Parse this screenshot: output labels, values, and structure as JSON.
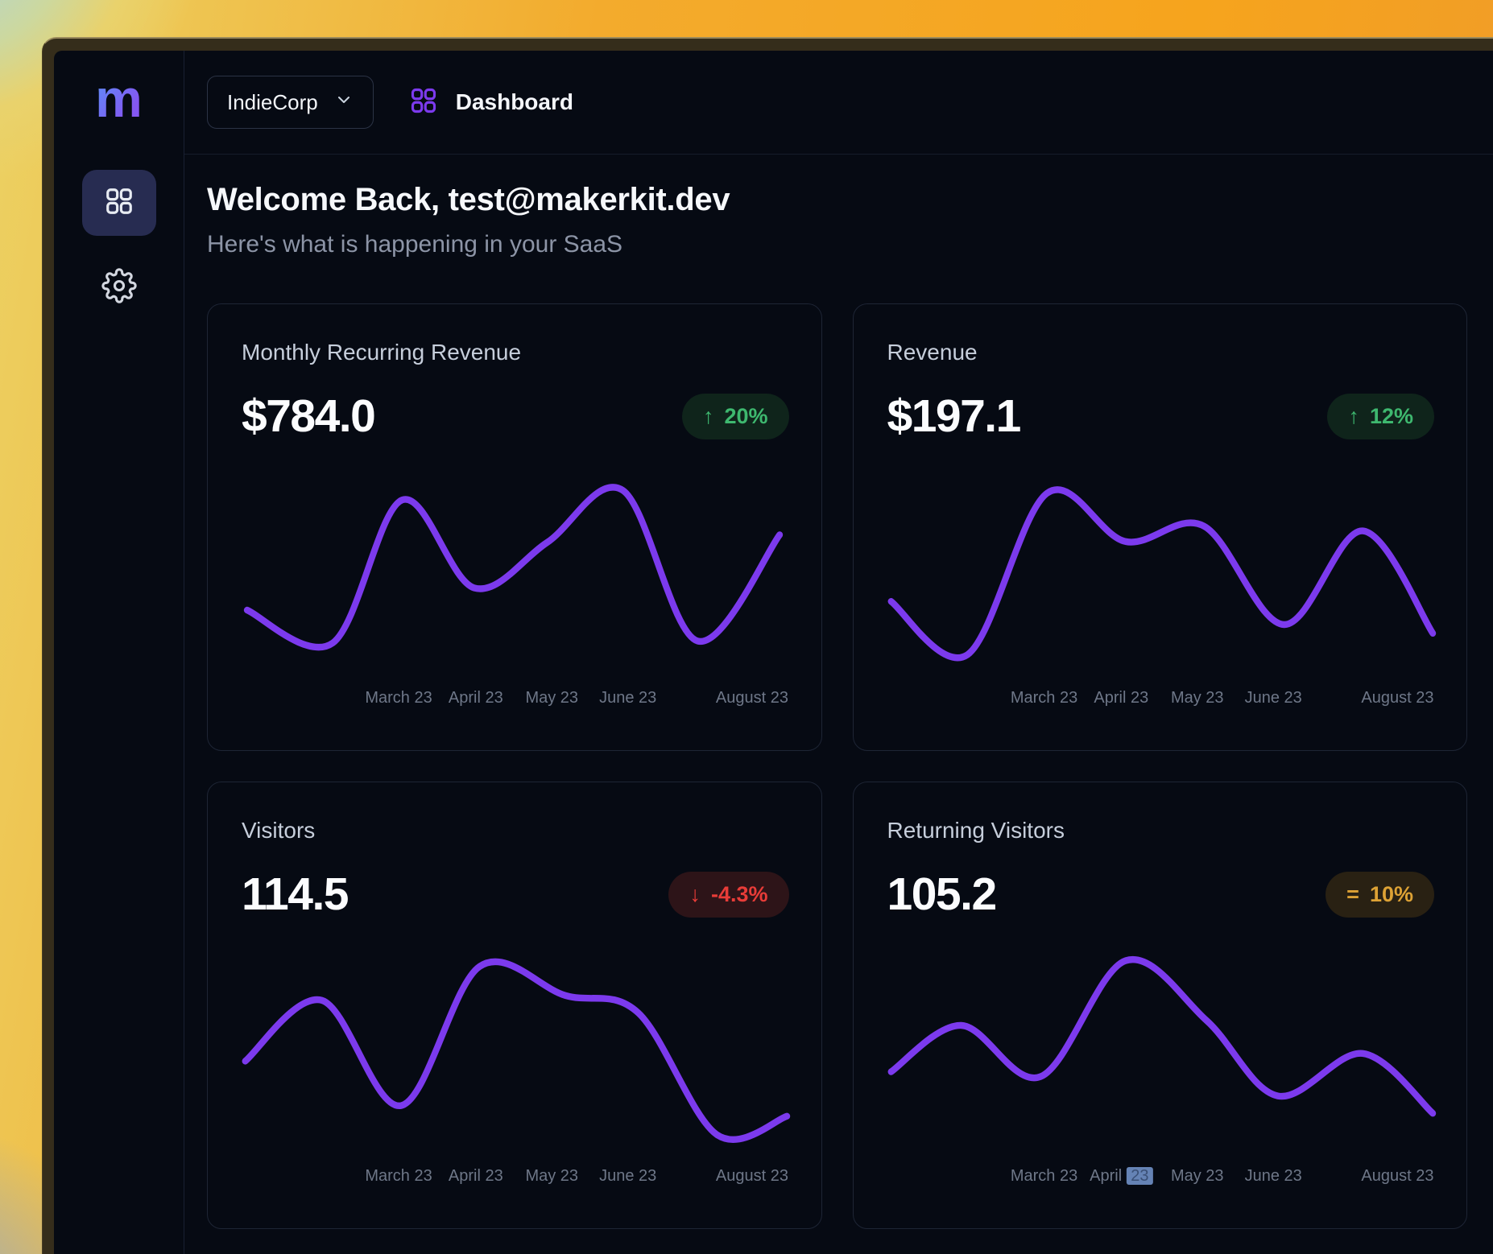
{
  "topbar": {
    "tenant_label": "IndieCorp",
    "page_label": "Dashboard"
  },
  "sidebar": {
    "logo_text": "m",
    "items": [
      {
        "label": "dashboard",
        "active": true
      },
      {
        "label": "settings",
        "active": false
      }
    ]
  },
  "header": {
    "title": "Welcome Back, test@makerkit.dev",
    "subtitle": "Here's what is happening in your SaaS"
  },
  "cards": [
    {
      "title": "Monthly Recurring Revenue",
      "value": "$784.0",
      "badge": {
        "icon": "↑",
        "label": "20%",
        "variant": "up"
      }
    },
    {
      "title": "Revenue",
      "value": "$197.1",
      "badge": {
        "icon": "↑",
        "label": "12%",
        "variant": "up"
      }
    },
    {
      "title": "Visitors",
      "value": "114.5",
      "badge": {
        "icon": "↓",
        "label": "-4.3%",
        "variant": "down"
      }
    },
    {
      "title": "Returning Visitors",
      "value": "105.2",
      "badge": {
        "icon": "=",
        "label": "10%",
        "variant": "flat"
      }
    }
  ],
  "colors": {
    "accent_purple": "#7c3aed",
    "trend_up_green": "#3eb86f",
    "trend_down_red": "#e83c38",
    "trend_flat_amber": "#dda235",
    "selection_blue": "#6583b5",
    "card_border": "#1e2535",
    "app_background": "#060a13"
  },
  "chart_data": [
    {
      "type": "line",
      "title": "Monthly Recurring Revenue",
      "categories": [
        "March 23",
        "April 23",
        "May 23",
        "June 23",
        "August 23"
      ],
      "y_axis_visible": false,
      "grid": false,
      "legend": "none",
      "line_color": "#7c3aed",
      "stroke_width": 7,
      "points_space": "600x200 viewBox, y-down, values estimated from pixels (no y axis shown)",
      "points": [
        [
          6,
          140
        ],
        [
          100,
          174
        ],
        [
          176,
          26
        ],
        [
          255,
          117
        ],
        [
          335,
          70
        ],
        [
          418,
          16
        ],
        [
          500,
          172
        ],
        [
          590,
          62
        ]
      ],
      "ticks": [
        {
          "text": "March 23",
          "x": 28.7
        },
        {
          "text": "April 23",
          "x": 42.8
        },
        {
          "text": "May 23",
          "x": 56.7
        },
        {
          "text": "June 23",
          "x": 70.6
        },
        {
          "text": "August 23",
          "x": 93.3
        }
      ]
    },
    {
      "type": "line",
      "title": "Revenue",
      "categories": [
        "March 23",
        "April 23",
        "May 23",
        "June 23",
        "August 23"
      ],
      "y_axis_visible": false,
      "grid": false,
      "legend": "none",
      "line_color": "#7c3aed",
      "stroke_width": 7,
      "points_space": "600x200 viewBox, y-down, values estimated from pixels (no y axis shown)",
      "points": [
        [
          4,
          131
        ],
        [
          88,
          186
        ],
        [
          175,
          19
        ],
        [
          261,
          69
        ],
        [
          347,
          53
        ],
        [
          435,
          155
        ],
        [
          521,
          58
        ],
        [
          598,
          164
        ]
      ],
      "ticks": [
        {
          "text": "March 23",
          "x": 28.7
        },
        {
          "text": "April 23",
          "x": 42.8
        },
        {
          "text": "May 23",
          "x": 56.7
        },
        {
          "text": "June 23",
          "x": 70.6
        },
        {
          "text": "August 23",
          "x": 93.3
        }
      ]
    },
    {
      "type": "line",
      "title": "Visitors",
      "categories": [
        "March 23",
        "April 23",
        "May 23",
        "June 23",
        "August 23"
      ],
      "y_axis_visible": false,
      "grid": false,
      "legend": "none",
      "line_color": "#7c3aed",
      "stroke_width": 7,
      "points_space": "600x200 viewBox, y-down, values estimated from pixels (no y axis shown)",
      "points": [
        [
          4,
          112
        ],
        [
          88,
          49
        ],
        [
          175,
          158
        ],
        [
          261,
          14
        ],
        [
          355,
          44
        ],
        [
          435,
          62
        ],
        [
          521,
          188
        ],
        [
          598,
          169
        ]
      ],
      "ticks": [
        {
          "text": "March 23",
          "x": 28.7
        },
        {
          "text": "April 23",
          "x": 42.8
        },
        {
          "text": "May 23",
          "x": 56.7
        },
        {
          "text": "June 23",
          "x": 70.6
        },
        {
          "text": "August 23",
          "x": 93.3
        }
      ]
    },
    {
      "type": "line",
      "title": "Returning Visitors",
      "categories": [
        "March 23",
        "April 23",
        "May 23",
        "June 23",
        "August 23"
      ],
      "y_axis_visible": false,
      "grid": false,
      "legend": "none",
      "line_color": "#7c3aed",
      "stroke_width": 7,
      "points_space": "600x200 viewBox, y-down, values estimated from pixels (no y axis shown)",
      "points": [
        [
          4,
          123
        ],
        [
          81,
          75
        ],
        [
          168,
          128
        ],
        [
          261,
          8
        ],
        [
          350,
          70
        ],
        [
          428,
          148
        ],
        [
          521,
          104
        ],
        [
          598,
          166
        ]
      ],
      "ticks": [
        {
          "text": "March 23",
          "x": 28.7
        },
        {
          "text": "April",
          "x": 42.8,
          "sel": "23"
        },
        {
          "text": "May 23",
          "x": 56.7
        },
        {
          "text": "June 23",
          "x": 70.6
        },
        {
          "text": "August 23",
          "x": 93.3
        }
      ]
    }
  ]
}
